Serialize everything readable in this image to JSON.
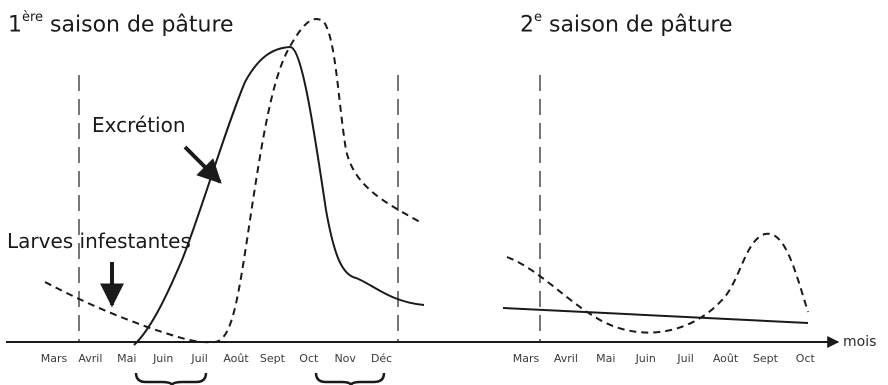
{
  "season1": {
    "title_prefix": "1",
    "title_sup": "ère",
    "title_rest": " saison de pâture",
    "months": [
      "Mars",
      "Avril",
      "Mai",
      "Juin",
      "Juil",
      "Août",
      "Sept",
      "Oct",
      "Nov",
      "Déc"
    ]
  },
  "season2": {
    "title_prefix": "2",
    "title_sup": "e",
    "title_rest": " saison de pâture",
    "months": [
      "Mars",
      "Avril",
      "Mai",
      "Juin",
      "Juil",
      "Août",
      "Sept",
      "Oct"
    ]
  },
  "labels": {
    "excretion": "Excrétion",
    "larves": "Larves infestantes",
    "axis_unit": "mois"
  },
  "curves": {
    "excretion": "solid line",
    "larves_infestantes": "dashed line"
  },
  "colors": {
    "ink": "#1a1a1a",
    "guides": "#777777"
  }
}
